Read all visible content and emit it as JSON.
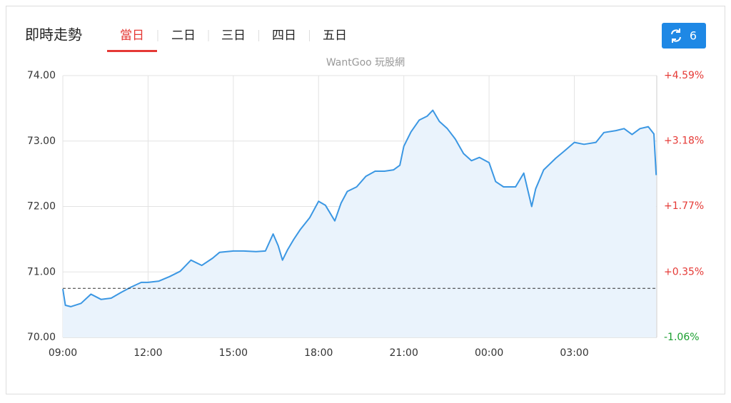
{
  "header": {
    "title": "即時走勢",
    "tabs": [
      "當日",
      "二日",
      "三日",
      "四日",
      "五日"
    ],
    "active_tab": 0,
    "refresh_count": 6
  },
  "chart_data": {
    "type": "line",
    "watermark": "WantGoo 玩股網",
    "series": [
      {
        "name": "price",
        "color": "#3b97e3",
        "x": [
          0,
          0.09,
          0.28,
          0.64,
          0.99,
          1.35,
          1.7,
          2.06,
          2.41,
          2.76,
          3,
          3.38,
          3.76,
          4.13,
          4.51,
          4.89,
          5.27,
          5.52,
          6,
          6.36,
          6.8,
          7.13,
          7.4,
          7.58,
          7.73,
          7.91,
          8.13,
          8.36,
          8.69,
          9,
          9.24,
          9.57,
          9.79,
          10.01,
          10.34,
          10.66,
          10.99,
          11.32,
          11.64,
          11.86,
          12,
          12.25,
          12.54,
          12.82,
          13.02,
          13.25,
          13.53,
          13.81,
          14.1,
          14.38,
          14.66,
          15,
          15.23,
          15.51,
          15.93,
          16.22,
          16.5,
          16.64,
          16.92,
          17.35,
          17.63,
          18,
          18.34,
          18.76,
          19.04,
          19.46,
          19.75,
          20.03,
          20.31,
          20.6,
          20.8,
          20.88
        ],
        "values": [
          70.74,
          70.49,
          70.47,
          70.52,
          70.66,
          70.58,
          70.6,
          70.69,
          70.77,
          70.84,
          70.84,
          70.86,
          70.93,
          71.01,
          71.18,
          71.1,
          71.21,
          71.3,
          71.32,
          71.32,
          71.31,
          71.32,
          71.58,
          71.4,
          71.18,
          71.34,
          71.5,
          71.65,
          71.83,
          72.08,
          72.02,
          71.78,
          72.05,
          72.23,
          72.3,
          72.46,
          72.54,
          72.54,
          72.56,
          72.63,
          72.92,
          73.14,
          73.32,
          73.38,
          73.47,
          73.3,
          73.19,
          73.03,
          72.81,
          72.7,
          72.75,
          72.67,
          72.38,
          72.3,
          72.3,
          72.51,
          72.0,
          72.27,
          72.56,
          72.74,
          72.84,
          72.98,
          72.95,
          72.98,
          73.13,
          73.16,
          73.19,
          73.1,
          73.19,
          73.22,
          73.11,
          72.48
        ]
      }
    ],
    "fill_color": "#eaf3fc",
    "reference": 70.75,
    "xlim": [
      0,
      20.9
    ],
    "xticks": [
      {
        "value": 0,
        "label": "09:00"
      },
      {
        "value": 3,
        "label": "12:00"
      },
      {
        "value": 6,
        "label": "15:00"
      },
      {
        "value": 9,
        "label": "18:00"
      },
      {
        "value": 12,
        "label": "21:00"
      },
      {
        "value": 15,
        "label": "00:00"
      },
      {
        "value": 18,
        "label": "03:00"
      }
    ],
    "ylim": [
      70,
      74
    ],
    "yticks": [
      {
        "value": 70,
        "label": "70.00"
      },
      {
        "value": 71,
        "label": "71.00"
      },
      {
        "value": 72,
        "label": "72.00"
      },
      {
        "value": 73,
        "label": "73.00"
      },
      {
        "value": 74,
        "label": "74.00"
      }
    ],
    "y2lim": [
      -1.06,
      4.59
    ],
    "y2ticks": [
      {
        "value": -1.06,
        "label": "-1.06%"
      },
      {
        "value": 0.35,
        "label": "+0.35%"
      },
      {
        "value": 1.77,
        "label": "+1.77%"
      },
      {
        "value": 3.18,
        "label": "+3.18%"
      },
      {
        "value": 4.59,
        "label": "+4.59%"
      }
    ],
    "up_color": "#e53935",
    "down_color": "#1a9e2f",
    "grid": true
  }
}
